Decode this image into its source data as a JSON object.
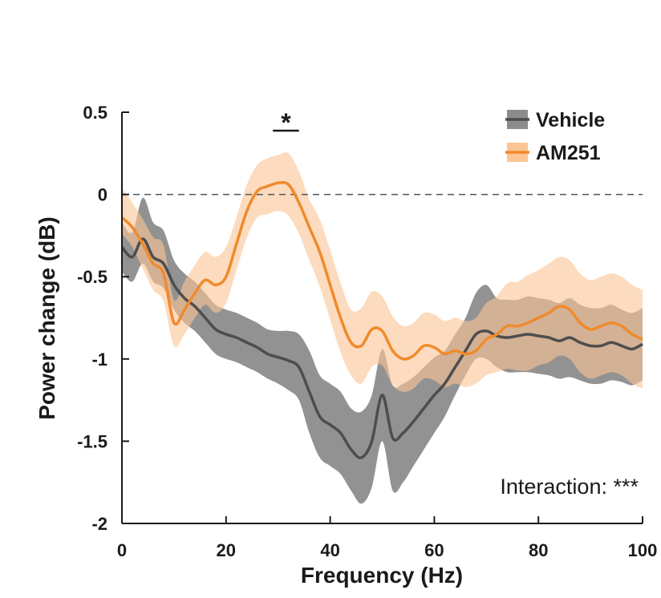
{
  "chart_data": {
    "type": "line",
    "title": "",
    "xlabel": "Frequency (Hz)",
    "ylabel": "Power change (dB)",
    "xlim": [
      0,
      100
    ],
    "ylim": [
      -2,
      0.5
    ],
    "xticks": [
      0,
      20,
      40,
      60,
      80,
      100
    ],
    "xtick_labels": [
      "0",
      "20",
      "40",
      "60",
      "80",
      "100"
    ],
    "yticks": [
      0.5,
      0,
      -0.5,
      -1,
      -1.5,
      -2
    ],
    "ytick_labels": [
      "0.5",
      "0",
      "-0.5",
      "-1",
      "-1.5",
      "-2"
    ],
    "reference_line": {
      "y": 0,
      "style": "dashed"
    },
    "legend_position": "top-right",
    "x": [
      0,
      2,
      4,
      6,
      8,
      10,
      12,
      14,
      16,
      18,
      20,
      22,
      24,
      26,
      28,
      30,
      32,
      34,
      36,
      38,
      40,
      42,
      44,
      46,
      48,
      50,
      52,
      54,
      56,
      58,
      60,
      62,
      64,
      66,
      68,
      70,
      72,
      74,
      76,
      78,
      80,
      82,
      84,
      86,
      88,
      90,
      92,
      94,
      96,
      98,
      100
    ],
    "series": [
      {
        "name": "Vehicle",
        "color": "#4d4d4d",
        "band_color": "#8c8c8c",
        "mean": [
          -0.32,
          -0.38,
          -0.27,
          -0.38,
          -0.42,
          -0.55,
          -0.63,
          -0.68,
          -0.75,
          -0.82,
          -0.85,
          -0.87,
          -0.9,
          -0.93,
          -0.97,
          -0.99,
          -1.01,
          -1.05,
          -1.2,
          -1.35,
          -1.4,
          -1.45,
          -1.55,
          -1.6,
          -1.5,
          -1.22,
          -1.48,
          -1.45,
          -1.38,
          -1.3,
          -1.22,
          -1.15,
          -1.05,
          -0.95,
          -0.85,
          -0.83,
          -0.86,
          -0.87,
          -0.86,
          -0.85,
          -0.86,
          -0.87,
          -0.89,
          -0.87,
          -0.9,
          -0.92,
          -0.92,
          -0.9,
          -0.92,
          -0.94,
          -0.91
        ],
        "lower": [
          -0.47,
          -0.53,
          -0.42,
          -0.53,
          -0.57,
          -0.7,
          -0.78,
          -0.83,
          -0.9,
          -0.97,
          -1.0,
          -1.02,
          -1.05,
          -1.08,
          -1.12,
          -1.15,
          -1.19,
          -1.25,
          -1.45,
          -1.6,
          -1.65,
          -1.7,
          -1.8,
          -1.88,
          -1.78,
          -1.5,
          -1.8,
          -1.75,
          -1.65,
          -1.55,
          -1.45,
          -1.35,
          -1.22,
          -1.1,
          -1.0,
          -1.0,
          -1.05,
          -1.08,
          -1.08,
          -1.08,
          -1.09,
          -1.1,
          -1.12,
          -1.11,
          -1.13,
          -1.15,
          -1.15,
          -1.13,
          -1.14,
          -1.16,
          -1.13
        ],
        "upper": [
          -0.17,
          -0.23,
          -0.02,
          -0.17,
          -0.22,
          -0.4,
          -0.48,
          -0.53,
          -0.6,
          -0.67,
          -0.7,
          -0.72,
          -0.75,
          -0.78,
          -0.82,
          -0.83,
          -0.83,
          -0.85,
          -0.95,
          -1.1,
          -1.15,
          -1.2,
          -1.3,
          -1.32,
          -1.22,
          -0.94,
          -1.16,
          -1.15,
          -1.11,
          -1.05,
          -0.99,
          -0.95,
          -0.85,
          -0.75,
          -0.6,
          -0.55,
          -0.63,
          -0.64,
          -0.64,
          -0.62,
          -0.63,
          -0.64,
          -0.66,
          -0.63,
          -0.67,
          -0.69,
          -0.69,
          -0.67,
          -0.7,
          -0.72,
          -0.69
        ]
      },
      {
        "name": "AM251",
        "color": "#f08a2c",
        "band_color": "#fbc596",
        "mean": [
          -0.14,
          -0.2,
          -0.3,
          -0.42,
          -0.48,
          -0.78,
          -0.7,
          -0.6,
          -0.52,
          -0.55,
          -0.5,
          -0.3,
          -0.1,
          0.02,
          0.05,
          0.07,
          0.06,
          -0.05,
          -0.2,
          -0.35,
          -0.55,
          -0.75,
          -0.9,
          -0.92,
          -0.82,
          -0.83,
          -0.95,
          -1.0,
          -0.98,
          -0.92,
          -0.93,
          -0.97,
          -0.95,
          -0.97,
          -0.95,
          -0.88,
          -0.85,
          -0.8,
          -0.8,
          -0.78,
          -0.75,
          -0.72,
          -0.68,
          -0.7,
          -0.78,
          -0.82,
          -0.8,
          -0.78,
          -0.8,
          -0.85,
          -0.88
        ],
        "lower": [
          -0.24,
          -0.32,
          -0.45,
          -0.58,
          -0.65,
          -0.92,
          -0.85,
          -0.75,
          -0.67,
          -0.72,
          -0.66,
          -0.46,
          -0.26,
          -0.14,
          -0.12,
          -0.1,
          -0.13,
          -0.24,
          -0.4,
          -0.56,
          -0.76,
          -0.96,
          -1.1,
          -1.15,
          -1.05,
          -1.04,
          -1.16,
          -1.2,
          -1.18,
          -1.12,
          -1.13,
          -1.17,
          -1.15,
          -1.17,
          -1.15,
          -1.1,
          -1.08,
          -1.06,
          -1.07,
          -1.07,
          -1.04,
          -1.02,
          -0.98,
          -1.0,
          -1.08,
          -1.12,
          -1.1,
          -1.08,
          -1.1,
          -1.15,
          -1.18
        ],
        "upper": [
          0.04,
          -0.05,
          -0.15,
          -0.26,
          -0.31,
          -0.64,
          -0.53,
          -0.43,
          -0.35,
          -0.38,
          -0.32,
          -0.14,
          0.06,
          0.18,
          0.22,
          0.24,
          0.25,
          0.14,
          -0.03,
          -0.15,
          -0.34,
          -0.54,
          -0.7,
          -0.69,
          -0.59,
          -0.62,
          -0.74,
          -0.8,
          -0.78,
          -0.72,
          -0.73,
          -0.77,
          -0.75,
          -0.77,
          -0.75,
          -0.66,
          -0.62,
          -0.54,
          -0.53,
          -0.49,
          -0.46,
          -0.42,
          -0.38,
          -0.4,
          -0.48,
          -0.52,
          -0.5,
          -0.48,
          -0.5,
          -0.55,
          -0.58
        ]
      }
    ],
    "annotations": {
      "significance_marker": {
        "text": "*",
        "x_range": [
          29,
          34
        ]
      },
      "interaction": "Interaction: ***"
    }
  }
}
